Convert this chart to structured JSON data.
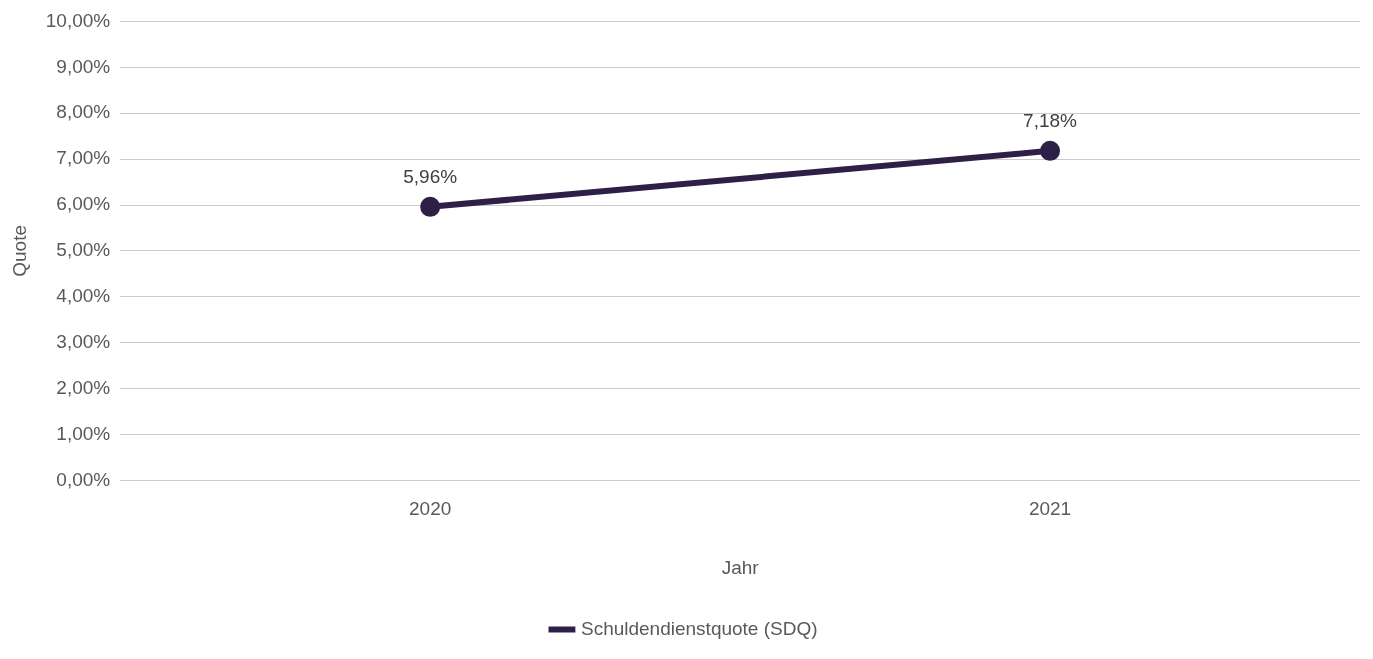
{
  "chart_data": {
    "type": "line",
    "xlabel": "Jahr",
    "ylabel": "Quote",
    "categories": [
      "2020",
      "2021"
    ],
    "series": [
      {
        "name": "Schuldendienstquote (SDQ)",
        "color": "#2e1f47",
        "values": [
          5.96,
          7.18
        ],
        "value_labels": [
          "5,96%",
          "7,18%"
        ]
      }
    ],
    "ylim": [
      0,
      10
    ],
    "yticks": [
      {
        "value": 0,
        "label": "0,00%"
      },
      {
        "value": 1,
        "label": "1,00%"
      },
      {
        "value": 2,
        "label": "2,00%"
      },
      {
        "value": 3,
        "label": "3,00%"
      },
      {
        "value": 4,
        "label": "4,00%"
      },
      {
        "value": 5,
        "label": "5,00%"
      },
      {
        "value": 6,
        "label": "6,00%"
      },
      {
        "value": 7,
        "label": "7,00%"
      },
      {
        "value": 8,
        "label": "8,00%"
      },
      {
        "value": 9,
        "label": "9,00%"
      },
      {
        "value": 10,
        "label": "10,00%"
      }
    ],
    "grid": "y",
    "legend": "bottom",
    "marker": "circle",
    "line_style": "solid"
  }
}
